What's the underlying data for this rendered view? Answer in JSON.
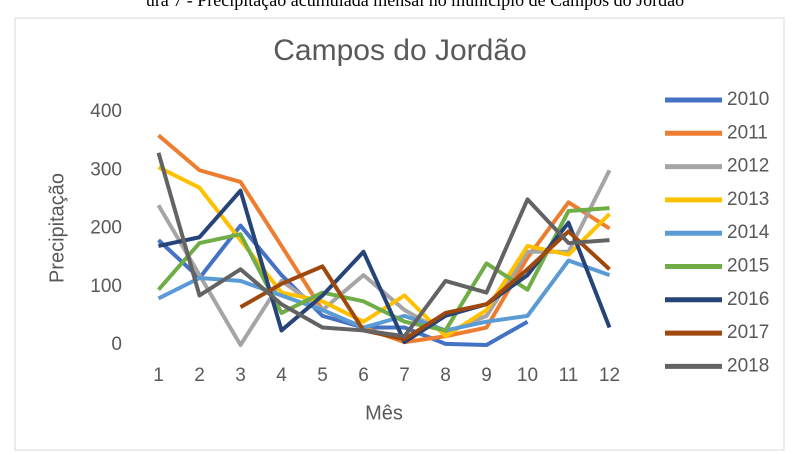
{
  "caption": "ura 7 - Precipitação acumulada mensal no município de Campos do Jordão",
  "chart_data": {
    "type": "line",
    "title": "Campos do Jordão",
    "x_label": "Mês",
    "y_label": "Precipitação",
    "categories": [
      "1",
      "2",
      "3",
      "4",
      "5",
      "6",
      "7",
      "8",
      "9",
      "10",
      "11",
      "12"
    ],
    "ylim": [
      0,
      400
    ],
    "yticks": [
      0,
      100,
      200,
      300,
      400
    ],
    "grid": false,
    "legend": "right",
    "series": [
      {
        "name": "2010",
        "color": "#4472c4",
        "values": [
          180,
          115,
          205,
          120,
          50,
          30,
          30,
          2,
          0,
          40,
          null,
          null
        ]
      },
      {
        "name": "2011",
        "color": "#ed7d31",
        "values": [
          360,
          300,
          280,
          170,
          60,
          30,
          5,
          15,
          30,
          150,
          245,
          200
        ]
      },
      {
        "name": "2012",
        "color": "#a5a5a5",
        "values": [
          240,
          120,
          0,
          110,
          60,
          120,
          60,
          20,
          50,
          160,
          160,
          300
        ]
      },
      {
        "name": "2013",
        "color": "#ffc000",
        "values": [
          305,
          270,
          180,
          90,
          75,
          40,
          85,
          15,
          60,
          170,
          155,
          225
        ]
      },
      {
        "name": "2014",
        "color": "#5b9bd5",
        "values": [
          80,
          115,
          110,
          85,
          60,
          30,
          50,
          25,
          40,
          50,
          145,
          120
        ]
      },
      {
        "name": "2015",
        "color": "#70ad47",
        "values": [
          95,
          175,
          190,
          55,
          90,
          75,
          40,
          25,
          140,
          95,
          230,
          235
        ]
      },
      {
        "name": "2016",
        "color": "#264478",
        "values": [
          170,
          185,
          265,
          25,
          85,
          160,
          5,
          50,
          70,
          120,
          210,
          30
        ]
      },
      {
        "name": "2017",
        "color": "#9e480e",
        "values": [
          null,
          null,
          65,
          105,
          135,
          25,
          10,
          55,
          70,
          130,
          195,
          130
        ]
      },
      {
        "name": "2018",
        "color": "#636363",
        "values": [
          330,
          85,
          130,
          70,
          30,
          25,
          15,
          110,
          90,
          250,
          175,
          180
        ]
      }
    ]
  }
}
